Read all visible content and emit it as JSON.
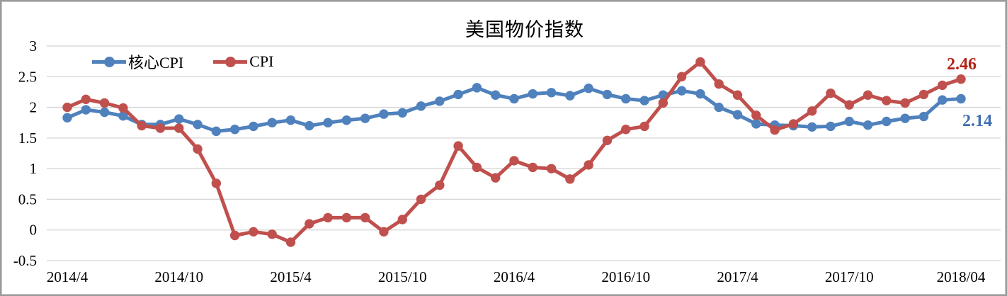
{
  "chart_data": {
    "type": "line",
    "title": "美国物价指数",
    "legend_position": "top-left",
    "grid": "horizontal-only",
    "gridline_color": "#d4d4d4",
    "tick_label_color": "#000000",
    "ylim": [
      -0.5,
      3
    ],
    "y_ticks": [
      3,
      2.5,
      2,
      1.5,
      1,
      0.5,
      0,
      -0.5
    ],
    "x_tick_labels": [
      "2014/4",
      "2014/10",
      "2015/4",
      "2015/10",
      "2016/4",
      "2016/10",
      "2017/4",
      "2017/10",
      "2018/04"
    ],
    "x": [
      "2014/4",
      "2014/5",
      "2014/6",
      "2014/7",
      "2014/8",
      "2014/9",
      "2014/10",
      "2014/11",
      "2014/12",
      "2015/1",
      "2015/2",
      "2015/3",
      "2015/4",
      "2015/5",
      "2015/6",
      "2015/7",
      "2015/8",
      "2015/9",
      "2015/10",
      "2015/11",
      "2015/12",
      "2016/1",
      "2016/2",
      "2016/3",
      "2016/4",
      "2016/5",
      "2016/6",
      "2016/7",
      "2016/8",
      "2016/9",
      "2016/10",
      "2016/11",
      "2016/12",
      "2017/1",
      "2017/2",
      "2017/3",
      "2017/4",
      "2017/5",
      "2017/6",
      "2017/7",
      "2017/8",
      "2017/9",
      "2017/10",
      "2017/11",
      "2017/12",
      "2018/1",
      "2018/2",
      "2018/3",
      "2018/4"
    ],
    "series": [
      {
        "name": "核心CPI",
        "color": "#4f81bd",
        "end_label": "2.14",
        "end_label_color": "#3f6fb0",
        "values": [
          1.83,
          1.96,
          1.92,
          1.86,
          1.72,
          1.72,
          1.81,
          1.72,
          1.61,
          1.64,
          1.69,
          1.75,
          1.79,
          1.7,
          1.75,
          1.79,
          1.82,
          1.89,
          1.91,
          2.02,
          2.1,
          2.21,
          2.32,
          2.2,
          2.14,
          2.22,
          2.24,
          2.19,
          2.31,
          2.21,
          2.14,
          2.11,
          2.2,
          2.27,
          2.22,
          2.0,
          1.88,
          1.73,
          1.71,
          1.7,
          1.68,
          1.69,
          1.77,
          1.71,
          1.77,
          1.82,
          1.85,
          2.12,
          2.14
        ]
      },
      {
        "name": "CPI",
        "color": "#c0504d",
        "end_label": "2.46",
        "end_label_color": "#b02318",
        "values": [
          2.0,
          2.13,
          2.07,
          1.99,
          1.7,
          1.66,
          1.66,
          1.32,
          0.76,
          -0.09,
          -0.03,
          -0.07,
          -0.2,
          0.1,
          0.2,
          0.2,
          0.2,
          -0.03,
          0.17,
          0.5,
          0.73,
          1.37,
          1.02,
          0.85,
          1.13,
          1.02,
          1.0,
          0.83,
          1.06,
          1.46,
          1.64,
          1.69,
          2.07,
          2.5,
          2.74,
          2.38,
          2.2,
          1.87,
          1.63,
          1.73,
          1.94,
          2.23,
          2.04,
          2.2,
          2.11,
          2.07,
          2.21,
          2.36,
          2.46
        ]
      }
    ]
  }
}
